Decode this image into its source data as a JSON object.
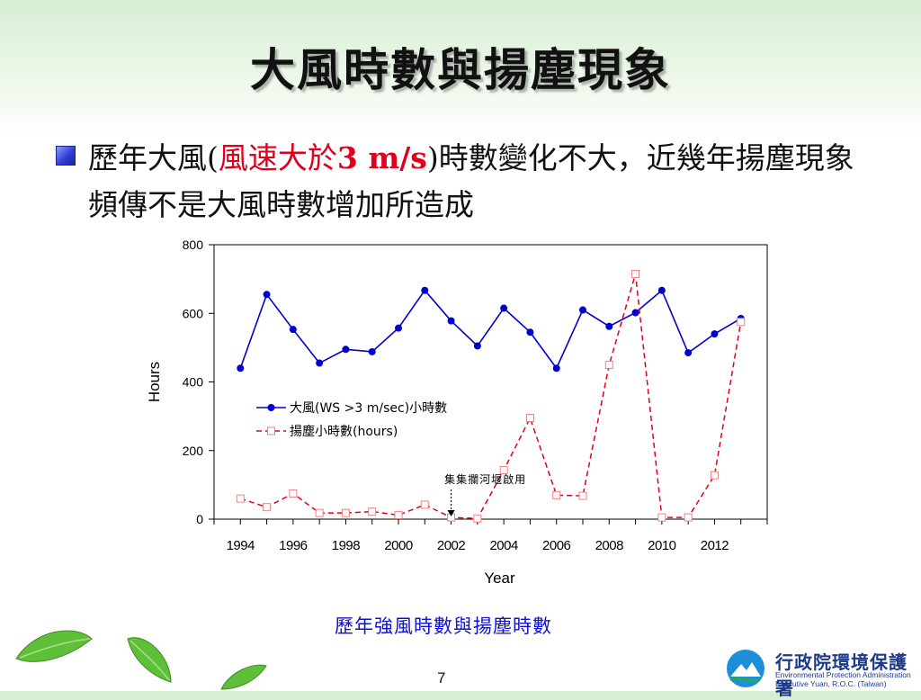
{
  "slide": {
    "title": "大風時數與揚塵現象",
    "bullet_part1": "歷年大風(",
    "bullet_red_cn": "風速大於",
    "bullet_red_num": "3 m/s",
    "bullet_part2": ")時數變化不大，近幾年揚塵現象頻傳不是大風時數增加所造成",
    "caption": "歷年強風時數與揚塵時數",
    "page_number": "7"
  },
  "org": {
    "name_cn": "行政院環境保護署",
    "name_en_line1": "Environmental Protection Administration",
    "name_en_line2": "Executive Yuan, R.O.C. (Taiwan)"
  },
  "chart_data": {
    "type": "line",
    "xlabel": "Year",
    "ylabel": "Hours",
    "xlim": [
      1993,
      2014
    ],
    "ylim": [
      0,
      800
    ],
    "yticks": [
      0,
      200,
      400,
      600,
      800
    ],
    "xtick_labels": [
      1994,
      1996,
      1998,
      2000,
      2002,
      2004,
      2006,
      2008,
      2010,
      2012
    ],
    "grid": false,
    "legend_position": "middle-left",
    "annotation": {
      "text": "集集攔河堰啟用",
      "x": 2002,
      "arrow_to_y": 0
    },
    "x": [
      1994,
      1995,
      1996,
      1997,
      1998,
      1999,
      2000,
      2001,
      2002,
      2003,
      2004,
      2005,
      2006,
      2007,
      2008,
      2009,
      2010,
      2011,
      2012,
      2013
    ],
    "series": [
      {
        "name": "大風(WS >3 m/sec)小時數",
        "color": "#0000cc",
        "style": "solid",
        "marker": "circle",
        "values": [
          440,
          655,
          553,
          455,
          495,
          488,
          557,
          667,
          578,
          505,
          615,
          545,
          440,
          610,
          562,
          602,
          667,
          485,
          540,
          585
        ]
      },
      {
        "name": "揚塵小時數(hours)",
        "color": "#e0001b",
        "style": "dashed",
        "marker": "square-open",
        "values": [
          60,
          35,
          75,
          18,
          18,
          22,
          12,
          42,
          5,
          2,
          143,
          295,
          70,
          68,
          450,
          715,
          5,
          5,
          128,
          575
        ]
      }
    ]
  }
}
